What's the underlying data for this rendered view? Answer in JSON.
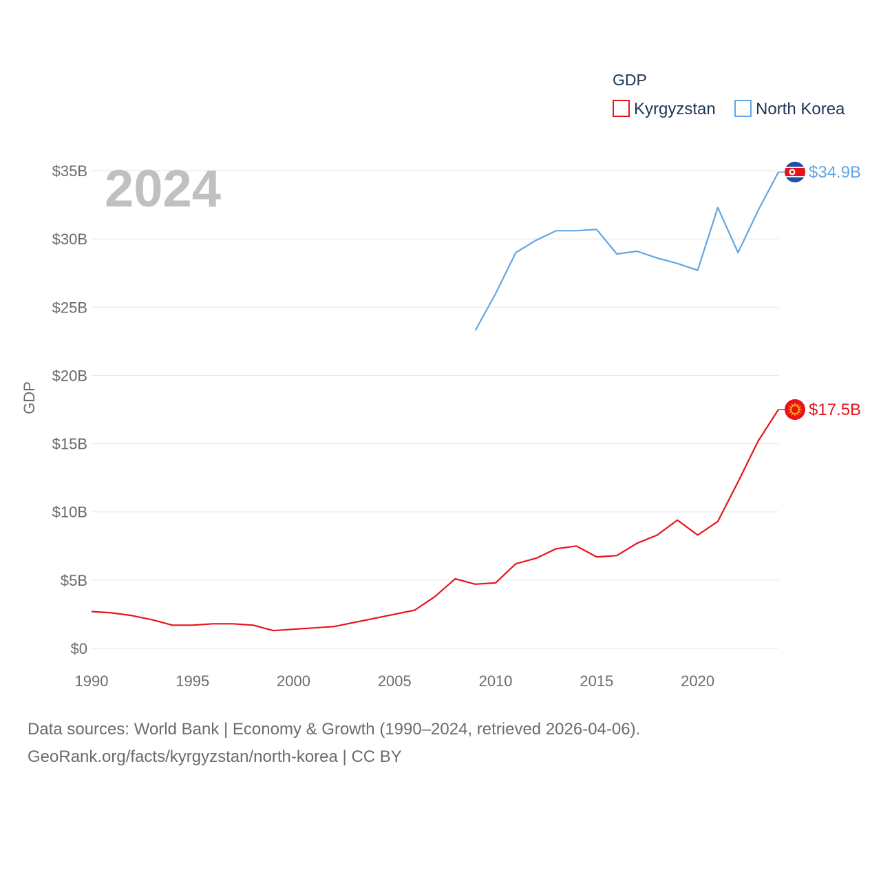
{
  "chart_data": {
    "type": "line",
    "title": "",
    "year_label": "2024",
    "ylabel": "GDP",
    "xlabel": "",
    "xlim": [
      1990,
      2024
    ],
    "ylim": [
      0,
      35
    ],
    "x_ticks": [
      1990,
      1995,
      2000,
      2005,
      2010,
      2015,
      2020
    ],
    "y_ticks": [
      0,
      5,
      10,
      15,
      20,
      25,
      30,
      35
    ],
    "y_tick_labels": [
      "$0",
      "$5B",
      "$10B",
      "$15B",
      "$20B",
      "$25B",
      "$30B",
      "$35B"
    ],
    "legend": {
      "title": "GDP",
      "position": "top-right"
    },
    "series": [
      {
        "name": "Kyrgyzstan",
        "color": "#e8121b",
        "end_label": "$17.5B",
        "flag_icon": "kyrgyzstan-flag-icon",
        "x": [
          1990,
          1991,
          1992,
          1993,
          1994,
          1995,
          1996,
          1997,
          1998,
          1999,
          2000,
          2001,
          2002,
          2003,
          2004,
          2005,
          2006,
          2007,
          2008,
          2009,
          2010,
          2011,
          2012,
          2013,
          2014,
          2015,
          2016,
          2017,
          2018,
          2019,
          2020,
          2021,
          2022,
          2023,
          2024
        ],
        "values": [
          2.7,
          2.6,
          2.4,
          2.1,
          1.7,
          1.7,
          1.8,
          1.8,
          1.7,
          1.3,
          1.4,
          1.5,
          1.6,
          1.9,
          2.2,
          2.5,
          2.8,
          3.8,
          5.1,
          4.7,
          4.8,
          6.2,
          6.6,
          7.3,
          7.5,
          6.7,
          6.8,
          7.7,
          8.3,
          9.4,
          8.3,
          9.3,
          12.2,
          15.2,
          17.5
        ]
      },
      {
        "name": "North Korea",
        "color": "#63a5e3",
        "end_label": "$34.9B",
        "flag_icon": "north-korea-flag-icon",
        "x": [
          2009,
          2010,
          2011,
          2012,
          2013,
          2014,
          2015,
          2016,
          2017,
          2018,
          2019,
          2020,
          2021,
          2022,
          2023,
          2024
        ],
        "values": [
          23.3,
          26.0,
          29.0,
          29.9,
          30.6,
          30.6,
          30.7,
          28.9,
          29.1,
          28.6,
          28.2,
          27.7,
          32.3,
          29.0,
          32.1,
          34.9
        ]
      }
    ]
  },
  "footer": {
    "line1": "Data sources: World Bank | Economy & Growth (1990–2024, retrieved 2026-04-06).",
    "line2": "GeoRank.org/facts/kyrgyzstan/north-korea | CC BY"
  }
}
